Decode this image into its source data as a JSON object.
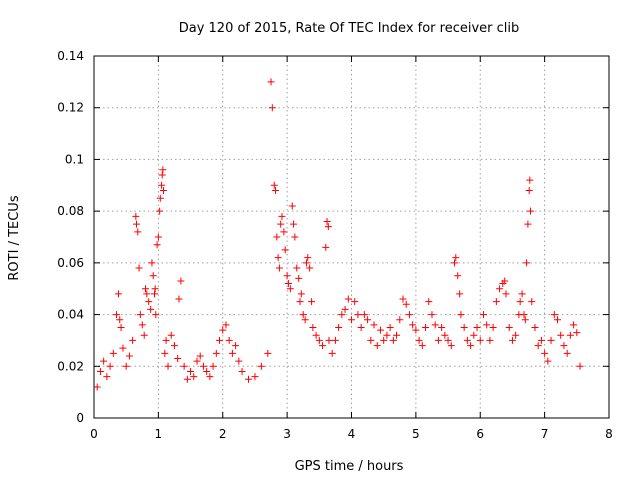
{
  "chart_data": {
    "type": "scatter",
    "title": "Day 120 of 2015, Rate Of TEC Index for receiver clib",
    "xlabel": "GPS time / hours",
    "ylabel": "ROTI / TECUs",
    "xlim": [
      0,
      8
    ],
    "ylim": [
      0,
      0.14
    ],
    "x_ticks": [
      "0",
      "1",
      "2",
      "3",
      "4",
      "5",
      "6",
      "7",
      "8"
    ],
    "x_tick_values": [
      0,
      1,
      2,
      3,
      4,
      5,
      6,
      7,
      8
    ],
    "y_ticks": [
      "0",
      "0.02",
      "0.04",
      "0.06",
      "0.08",
      "0.1",
      "0.12",
      "0.14"
    ],
    "y_tick_values": [
      0,
      0.02,
      0.04,
      0.06,
      0.08,
      0.1,
      0.12,
      0.14
    ],
    "grid": true,
    "marker": "+",
    "color": "#ff0000",
    "series": [
      {
        "name": "ROTI",
        "points": [
          [
            0.05,
            0.012
          ],
          [
            0.1,
            0.018
          ],
          [
            0.15,
            0.022
          ],
          [
            0.2,
            0.016
          ],
          [
            0.25,
            0.02
          ],
          [
            0.3,
            0.025
          ],
          [
            0.35,
            0.04
          ],
          [
            0.38,
            0.048
          ],
          [
            0.4,
            0.038
          ],
          [
            0.42,
            0.035
          ],
          [
            0.45,
            0.027
          ],
          [
            0.5,
            0.02
          ],
          [
            0.55,
            0.024
          ],
          [
            0.6,
            0.03
          ],
          [
            0.65,
            0.078
          ],
          [
            0.66,
            0.075
          ],
          [
            0.68,
            0.072
          ],
          [
            0.7,
            0.058
          ],
          [
            0.72,
            0.04
          ],
          [
            0.75,
            0.036
          ],
          [
            0.78,
            0.032
          ],
          [
            0.8,
            0.05
          ],
          [
            0.82,
            0.048
          ],
          [
            0.85,
            0.045
          ],
          [
            0.88,
            0.042
          ],
          [
            0.9,
            0.06
          ],
          [
            0.92,
            0.055
          ],
          [
            0.94,
            0.048
          ],
          [
            0.95,
            0.05
          ],
          [
            0.96,
            0.04
          ],
          [
            0.98,
            0.067
          ],
          [
            1.0,
            0.07
          ],
          [
            1.02,
            0.08
          ],
          [
            1.03,
            0.085
          ],
          [
            1.05,
            0.09
          ],
          [
            1.06,
            0.094
          ],
          [
            1.07,
            0.096
          ],
          [
            1.08,
            0.088
          ],
          [
            1.1,
            0.025
          ],
          [
            1.12,
            0.03
          ],
          [
            1.15,
            0.02
          ],
          [
            1.2,
            0.032
          ],
          [
            1.25,
            0.028
          ],
          [
            1.3,
            0.023
          ],
          [
            1.32,
            0.046
          ],
          [
            1.35,
            0.053
          ],
          [
            1.4,
            0.02
          ],
          [
            1.45,
            0.015
          ],
          [
            1.5,
            0.018
          ],
          [
            1.55,
            0.016
          ],
          [
            1.6,
            0.022
          ],
          [
            1.65,
            0.024
          ],
          [
            1.7,
            0.02
          ],
          [
            1.75,
            0.018
          ],
          [
            1.8,
            0.016
          ],
          [
            1.85,
            0.02
          ],
          [
            1.9,
            0.025
          ],
          [
            1.95,
            0.03
          ],
          [
            2.0,
            0.034
          ],
          [
            2.05,
            0.036
          ],
          [
            2.1,
            0.03
          ],
          [
            2.15,
            0.025
          ],
          [
            2.2,
            0.028
          ],
          [
            2.25,
            0.022
          ],
          [
            2.3,
            0.018
          ],
          [
            2.4,
            0.015
          ],
          [
            2.5,
            0.016
          ],
          [
            2.6,
            0.02
          ],
          [
            2.7,
            0.025
          ],
          [
            2.75,
            0.13
          ],
          [
            2.77,
            0.12
          ],
          [
            2.8,
            0.09
          ],
          [
            2.82,
            0.088
          ],
          [
            2.84,
            0.07
          ],
          [
            2.86,
            0.062
          ],
          [
            2.88,
            0.058
          ],
          [
            2.9,
            0.075
          ],
          [
            2.92,
            0.078
          ],
          [
            2.95,
            0.072
          ],
          [
            2.97,
            0.065
          ],
          [
            3.0,
            0.055
          ],
          [
            3.02,
            0.052
          ],
          [
            3.05,
            0.05
          ],
          [
            3.08,
            0.082
          ],
          [
            3.1,
            0.075
          ],
          [
            3.12,
            0.07
          ],
          [
            3.15,
            0.058
          ],
          [
            3.18,
            0.054
          ],
          [
            3.2,
            0.045
          ],
          [
            3.22,
            0.048
          ],
          [
            3.25,
            0.04
          ],
          [
            3.28,
            0.038
          ],
          [
            3.3,
            0.06
          ],
          [
            3.32,
            0.062
          ],
          [
            3.35,
            0.058
          ],
          [
            3.38,
            0.045
          ],
          [
            3.4,
            0.035
          ],
          [
            3.45,
            0.032
          ],
          [
            3.5,
            0.03
          ],
          [
            3.55,
            0.028
          ],
          [
            3.6,
            0.066
          ],
          [
            3.62,
            0.076
          ],
          [
            3.64,
            0.074
          ],
          [
            3.65,
            0.03
          ],
          [
            3.7,
            0.025
          ],
          [
            3.75,
            0.03
          ],
          [
            3.8,
            0.035
          ],
          [
            3.85,
            0.04
          ],
          [
            3.9,
            0.042
          ],
          [
            3.95,
            0.046
          ],
          [
            4.0,
            0.038
          ],
          [
            4.05,
            0.045
          ],
          [
            4.1,
            0.04
          ],
          [
            4.15,
            0.035
          ],
          [
            4.2,
            0.04
          ],
          [
            4.25,
            0.038
          ],
          [
            4.3,
            0.03
          ],
          [
            4.35,
            0.036
          ],
          [
            4.4,
            0.028
          ],
          [
            4.45,
            0.034
          ],
          [
            4.5,
            0.03
          ],
          [
            4.55,
            0.032
          ],
          [
            4.6,
            0.035
          ],
          [
            4.65,
            0.03
          ],
          [
            4.7,
            0.032
          ],
          [
            4.75,
            0.038
          ],
          [
            4.8,
            0.046
          ],
          [
            4.85,
            0.044
          ],
          [
            4.9,
            0.04
          ],
          [
            4.95,
            0.036
          ],
          [
            5.0,
            0.034
          ],
          [
            5.05,
            0.03
          ],
          [
            5.1,
            0.028
          ],
          [
            5.15,
            0.035
          ],
          [
            5.2,
            0.045
          ],
          [
            5.25,
            0.04
          ],
          [
            5.3,
            0.036
          ],
          [
            5.35,
            0.03
          ],
          [
            5.4,
            0.035
          ],
          [
            5.45,
            0.032
          ],
          [
            5.5,
            0.03
          ],
          [
            5.55,
            0.028
          ],
          [
            5.6,
            0.06
          ],
          [
            5.62,
            0.062
          ],
          [
            5.65,
            0.055
          ],
          [
            5.68,
            0.048
          ],
          [
            5.7,
            0.04
          ],
          [
            5.75,
            0.035
          ],
          [
            5.8,
            0.03
          ],
          [
            5.85,
            0.028
          ],
          [
            5.9,
            0.032
          ],
          [
            5.95,
            0.035
          ],
          [
            6.0,
            0.03
          ],
          [
            6.05,
            0.04
          ],
          [
            6.1,
            0.036
          ],
          [
            6.15,
            0.03
          ],
          [
            6.2,
            0.035
          ],
          [
            6.25,
            0.045
          ],
          [
            6.3,
            0.05
          ],
          [
            6.35,
            0.052
          ],
          [
            6.38,
            0.053
          ],
          [
            6.4,
            0.048
          ],
          [
            6.45,
            0.035
          ],
          [
            6.5,
            0.03
          ],
          [
            6.55,
            0.032
          ],
          [
            6.6,
            0.04
          ],
          [
            6.62,
            0.045
          ],
          [
            6.65,
            0.048
          ],
          [
            6.68,
            0.04
          ],
          [
            6.7,
            0.038
          ],
          [
            6.72,
            0.06
          ],
          [
            6.74,
            0.075
          ],
          [
            6.76,
            0.088
          ],
          [
            6.77,
            0.092
          ],
          [
            6.78,
            0.08
          ],
          [
            6.8,
            0.045
          ],
          [
            6.85,
            0.035
          ],
          [
            6.9,
            0.028
          ],
          [
            6.95,
            0.03
          ],
          [
            7.0,
            0.025
          ],
          [
            7.05,
            0.022
          ],
          [
            7.1,
            0.03
          ],
          [
            7.15,
            0.04
          ],
          [
            7.2,
            0.038
          ],
          [
            7.25,
            0.032
          ],
          [
            7.3,
            0.028
          ],
          [
            7.35,
            0.025
          ],
          [
            7.4,
            0.032
          ],
          [
            7.45,
            0.036
          ],
          [
            7.5,
            0.033
          ],
          [
            7.55,
            0.02
          ]
        ]
      }
    ]
  }
}
